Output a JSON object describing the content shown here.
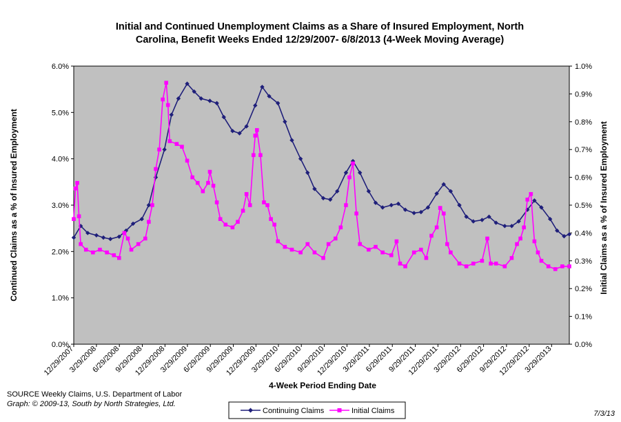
{
  "chart_data": {
    "type": "line",
    "title_line1": "Initial and Continued Unemployment Claims as a Share of Insured Employment, North",
    "title_line2": "Carolina, Benefit Weeks Ended 12/29/2007- 6/8/2013 (4-Week Moving Average)",
    "xlabel": "4-Week Period Ending Date",
    "ylabel_left": "Continued Claims as a % of Insured Employment",
    "ylabel_right": "Initial Claims as a % of Insured Employment",
    "ylim_left": [
      0,
      6
    ],
    "ylim_right": [
      0,
      1
    ],
    "yticks_left": [
      "0.0%",
      "1.0%",
      "2.0%",
      "3.0%",
      "4.0%",
      "5.0%",
      "6.0%"
    ],
    "yticks_right": [
      "0.0%",
      "0.1%",
      "0.2%",
      "0.3%",
      "0.4%",
      "0.5%",
      "0.6%",
      "0.7%",
      "0.8%",
      "0.9%",
      "1.0%"
    ],
    "xticks": [
      "12/29/2007",
      "3/29/2008",
      "6/29/2008",
      "9/29/2008",
      "12/29/2008",
      "3/29/2009",
      "6/29/2009",
      "9/29/2009",
      "12/29/2009",
      "3/29/2010",
      "6/29/2010",
      "9/29/2010",
      "12/29/2010",
      "3/29/2011",
      "6/29/2011",
      "9/29/2011",
      "12/29/2011",
      "3/29/2012",
      "6/29/2012",
      "9/29/2012",
      "12/29/2012",
      "3/29/2013"
    ],
    "x_range": [
      "12/29/2007",
      "6/8/2013"
    ],
    "grid": false,
    "plot_background": "#c0c0c0",
    "legend_position": "bottom",
    "series": [
      {
        "name": "Continuing Claims",
        "axis": "left",
        "color": "#1f1f7a",
        "marker": "diamond",
        "points": [
          [
            "12/29/2007",
            2.3
          ],
          [
            "1/26/2008",
            2.55
          ],
          [
            "2/23/2008",
            2.4
          ],
          [
            "3/29/2008",
            2.35
          ],
          [
            "4/26/2008",
            2.3
          ],
          [
            "5/24/2008",
            2.27
          ],
          [
            "6/28/2008",
            2.32
          ],
          [
            "7/26/2008",
            2.45
          ],
          [
            "8/23/2008",
            2.6
          ],
          [
            "9/27/2008",
            2.7
          ],
          [
            "10/25/2008",
            3.0
          ],
          [
            "11/22/2008",
            3.6
          ],
          [
            "12/27/2008",
            4.2
          ],
          [
            "1/24/2009",
            4.95
          ],
          [
            "2/21/2009",
            5.3
          ],
          [
            "3/28/2009",
            5.62
          ],
          [
            "4/25/2009",
            5.45
          ],
          [
            "5/23/2009",
            5.3
          ],
          [
            "6/27/2009",
            5.25
          ],
          [
            "7/25/2009",
            5.2
          ],
          [
            "8/22/2009",
            4.9
          ],
          [
            "9/26/2009",
            4.6
          ],
          [
            "10/24/2009",
            4.55
          ],
          [
            "11/21/2009",
            4.7
          ],
          [
            "12/26/2009",
            5.15
          ],
          [
            "1/23/2010",
            5.55
          ],
          [
            "2/20/2010",
            5.35
          ],
          [
            "3/27/2010",
            5.2
          ],
          [
            "4/24/2010",
            4.8
          ],
          [
            "5/22/2010",
            4.4
          ],
          [
            "6/26/2010",
            4.0
          ],
          [
            "7/24/2010",
            3.7
          ],
          [
            "8/21/2010",
            3.35
          ],
          [
            "9/25/2010",
            3.15
          ],
          [
            "10/23/2010",
            3.12
          ],
          [
            "11/20/2010",
            3.3
          ],
          [
            "12/25/2010",
            3.7
          ],
          [
            "1/22/2011",
            3.95
          ],
          [
            "2/19/2011",
            3.7
          ],
          [
            "3/26/2011",
            3.3
          ],
          [
            "4/23/2011",
            3.05
          ],
          [
            "5/21/2011",
            2.95
          ],
          [
            "6/25/2011",
            3.0
          ],
          [
            "7/23/2011",
            3.03
          ],
          [
            "8/20/2011",
            2.9
          ],
          [
            "9/24/2011",
            2.83
          ],
          [
            "10/22/2011",
            2.85
          ],
          [
            "11/19/2011",
            2.95
          ],
          [
            "12/24/2011",
            3.25
          ],
          [
            "1/21/2012",
            3.45
          ],
          [
            "2/18/2012",
            3.3
          ],
          [
            "3/24/2012",
            3.0
          ],
          [
            "4/21/2012",
            2.75
          ],
          [
            "5/19/2012",
            2.65
          ],
          [
            "6/23/2012",
            2.68
          ],
          [
            "7/21/2012",
            2.75
          ],
          [
            "8/18/2012",
            2.62
          ],
          [
            "9/22/2012",
            2.55
          ],
          [
            "10/20/2012",
            2.55
          ],
          [
            "11/17/2012",
            2.65
          ],
          [
            "12/22/2012",
            2.9
          ],
          [
            "1/19/2013",
            3.1
          ],
          [
            "2/16/2013",
            2.95
          ],
          [
            "3/23/2013",
            2.7
          ],
          [
            "4/20/2013",
            2.45
          ],
          [
            "5/18/2013",
            2.33
          ],
          [
            "6/8/2013",
            2.37
          ]
        ]
      },
      {
        "name": "Initial Claims",
        "axis": "right",
        "color": "#ff00ff",
        "marker": "square",
        "points": [
          [
            "12/29/2007",
            0.45
          ],
          [
            "1/5/2008",
            0.56
          ],
          [
            "1/12/2008",
            0.58
          ],
          [
            "1/19/2008",
            0.46
          ],
          [
            "1/26/2008",
            0.36
          ],
          [
            "2/16/2008",
            0.34
          ],
          [
            "3/15/2008",
            0.33
          ],
          [
            "4/12/2008",
            0.34
          ],
          [
            "5/10/2008",
            0.33
          ],
          [
            "6/7/2008",
            0.32
          ],
          [
            "6/28/2008",
            0.31
          ],
          [
            "7/19/2008",
            0.4
          ],
          [
            "8/2/2008",
            0.38
          ],
          [
            "8/16/2008",
            0.34
          ],
          [
            "9/13/2008",
            0.36
          ],
          [
            "10/11/2008",
            0.38
          ],
          [
            "10/25/2008",
            0.44
          ],
          [
            "11/8/2008",
            0.5
          ],
          [
            "11/22/2008",
            0.63
          ],
          [
            "12/6/2008",
            0.7
          ],
          [
            "12/20/2008",
            0.88
          ],
          [
            "1/3/2009",
            0.94
          ],
          [
            "1/10/2009",
            0.86
          ],
          [
            "1/17/2009",
            0.73
          ],
          [
            "2/14/2009",
            0.72
          ],
          [
            "3/7/2009",
            0.71
          ],
          [
            "3/28/2009",
            0.66
          ],
          [
            "4/18/2009",
            0.6
          ],
          [
            "5/9/2009",
            0.58
          ],
          [
            "5/30/2009",
            0.55
          ],
          [
            "6/20/2009",
            0.58
          ],
          [
            "6/27/2009",
            0.62
          ],
          [
            "7/11/2009",
            0.57
          ],
          [
            "7/25/2009",
            0.51
          ],
          [
            "8/8/2009",
            0.45
          ],
          [
            "8/29/2009",
            0.43
          ],
          [
            "9/26/2009",
            0.42
          ],
          [
            "10/17/2009",
            0.44
          ],
          [
            "11/7/2009",
            0.48
          ],
          [
            "11/21/2009",
            0.54
          ],
          [
            "12/5/2009",
            0.5
          ],
          [
            "12/19/2009",
            0.68
          ],
          [
            "12/26/2009",
            0.75
          ],
          [
            "1/2/2010",
            0.77
          ],
          [
            "1/16/2010",
            0.68
          ],
          [
            "1/30/2010",
            0.51
          ],
          [
            "2/13/2010",
            0.5
          ],
          [
            "2/27/2010",
            0.45
          ],
          [
            "3/13/2010",
            0.43
          ],
          [
            "3/27/2010",
            0.37
          ],
          [
            "4/24/2010",
            0.35
          ],
          [
            "5/22/2010",
            0.34
          ],
          [
            "6/26/2010",
            0.33
          ],
          [
            "7/24/2010",
            0.36
          ],
          [
            "8/21/2010",
            0.33
          ],
          [
            "9/25/2010",
            0.31
          ],
          [
            "10/16/2010",
            0.36
          ],
          [
            "11/13/2010",
            0.38
          ],
          [
            "12/4/2010",
            0.42
          ],
          [
            "12/25/2010",
            0.5
          ],
          [
            "1/8/2011",
            0.6
          ],
          [
            "1/22/2011",
            0.65
          ],
          [
            "2/5/2011",
            0.47
          ],
          [
            "2/19/2011",
            0.36
          ],
          [
            "3/26/2011",
            0.34
          ],
          [
            "4/23/2011",
            0.35
          ],
          [
            "5/21/2011",
            0.33
          ],
          [
            "6/25/2011",
            0.32
          ],
          [
            "7/16/2011",
            0.37
          ],
          [
            "7/30/2011",
            0.29
          ],
          [
            "8/20/2011",
            0.28
          ],
          [
            "9/24/2011",
            0.33
          ],
          [
            "10/22/2011",
            0.34
          ],
          [
            "11/12/2011",
            0.31
          ],
          [
            "12/3/2011",
            0.39
          ],
          [
            "12/24/2011",
            0.42
          ],
          [
            "1/7/2012",
            0.49
          ],
          [
            "1/21/2012",
            0.47
          ],
          [
            "2/4/2012",
            0.36
          ],
          [
            "2/18/2012",
            0.33
          ],
          [
            "3/24/2012",
            0.29
          ],
          [
            "4/21/2012",
            0.28
          ],
          [
            "5/19/2012",
            0.29
          ],
          [
            "6/23/2012",
            0.3
          ],
          [
            "7/14/2012",
            0.38
          ],
          [
            "7/28/2012",
            0.29
          ],
          [
            "8/18/2012",
            0.29
          ],
          [
            "9/22/2012",
            0.28
          ],
          [
            "10/20/2012",
            0.31
          ],
          [
            "11/10/2012",
            0.36
          ],
          [
            "11/24/2012",
            0.38
          ],
          [
            "12/8/2012",
            0.42
          ],
          [
            "12/22/2012",
            0.52
          ],
          [
            "1/5/2013",
            0.54
          ],
          [
            "1/19/2013",
            0.37
          ],
          [
            "2/2/2013",
            0.33
          ],
          [
            "2/16/2013",
            0.3
          ],
          [
            "3/16/2013",
            0.28
          ],
          [
            "4/13/2013",
            0.27
          ],
          [
            "5/11/2013",
            0.28
          ],
          [
            "6/8/2013",
            0.28
          ]
        ]
      }
    ]
  },
  "footer": {
    "source": "SOURCE  Weekly Claims, U.S. Department of Labor",
    "credit": "Graph: © 2009-13, South by North Strategies, Ltd.",
    "date": "7/3/13"
  }
}
